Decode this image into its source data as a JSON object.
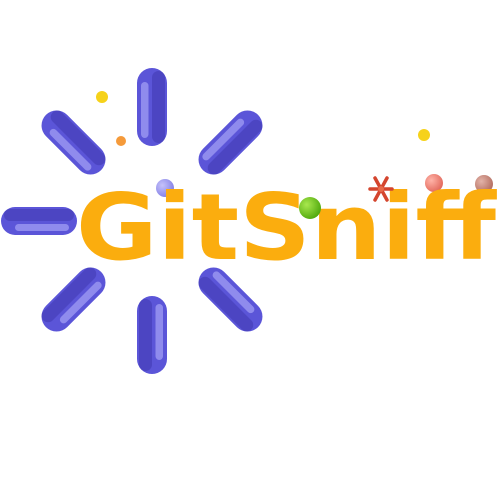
{
  "logo": {
    "wordmark": "GitSniff",
    "colors": {
      "wordmark": "#FBAD0E",
      "rays": "#5B55D8",
      "ray_highlight": "#9C98F2",
      "ray_shadow": "#3A33A8",
      "dot_yellow": "#F6D21A",
      "dot_orange": "#F59A3A",
      "dot_lavender": "#9B97EE",
      "dot_green": "#6FCB16",
      "dot_coral": "#F08276",
      "dot_rose": "#C98A7E",
      "spark": "#D4452E"
    },
    "icons": [
      "sunburst-icon",
      "sparkle-icon"
    ]
  }
}
